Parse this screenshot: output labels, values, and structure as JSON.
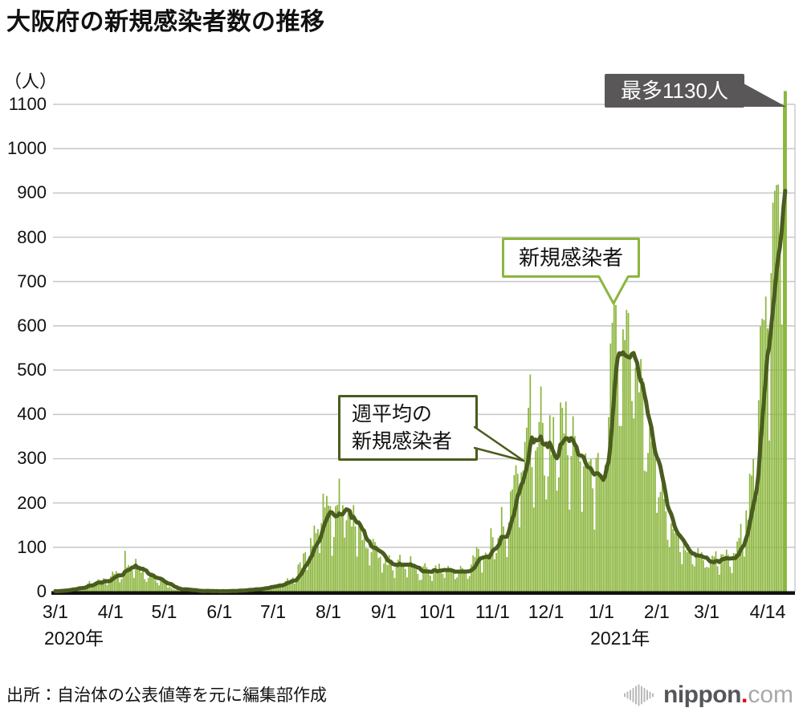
{
  "page": {
    "title": "大阪府の新規感染者数の推移",
    "unit_label": "（人）",
    "source_note": "出所：自治体の公表値等を元に編集部作成"
  },
  "annotations": {
    "max": {
      "text": "最多1130人",
      "value": 1130
    },
    "daily": {
      "text": "新規感染者"
    },
    "weekly": {
      "line1": "週平均の",
      "line2": "新規感染者"
    }
  },
  "logo": {
    "word": "nippon",
    "dot": ".",
    "tld": "com"
  },
  "colors": {
    "bar": "#8CB63E",
    "line": "#4A5C1E",
    "grid": "#C9C9C9",
    "axis": "#111111",
    "max_box": "#595757",
    "logo_gray": "#B9B9B9",
    "logo_red": "#E60012"
  },
  "chart_data": {
    "type": "bar",
    "title": "大阪府の新規感染者数の推移",
    "ylabel": "（人）",
    "ylim": [
      0,
      1100
    ],
    "y_ticks": [
      0,
      100,
      200,
      300,
      400,
      500,
      600,
      700,
      800,
      900,
      1000,
      1100
    ],
    "grid": true,
    "start_date": "2020-03-01",
    "end_date": "2021-04-14",
    "x_ticks": [
      {
        "label": "3/1",
        "day_index": 0
      },
      {
        "label": "4/1",
        "day_index": 31
      },
      {
        "label": "5/1",
        "day_index": 61
      },
      {
        "label": "6/1",
        "day_index": 92
      },
      {
        "label": "7/1",
        "day_index": 122
      },
      {
        "label": "8/1",
        "day_index": 153
      },
      {
        "label": "9/1",
        "day_index": 184
      },
      {
        "label": "10/1",
        "day_index": 214
      },
      {
        "label": "11/1",
        "day_index": 245
      },
      {
        "label": "12/1",
        "day_index": 275
      },
      {
        "label": "1/1",
        "day_index": 306
      },
      {
        "label": "2/1",
        "day_index": 337
      },
      {
        "label": "3/1",
        "day_index": 365
      },
      {
        "label": "4/14",
        "day_index": 409
      }
    ],
    "year_labels": [
      {
        "label": "2020年",
        "day_index": 0
      },
      {
        "label": "2021年",
        "day_index": 306
      }
    ],
    "series": [
      {
        "name": "新規感染者",
        "type": "bar",
        "color": "#8CB63E",
        "max_value": 1130,
        "daily_values": [
          1,
          0,
          2,
          2,
          3,
          4,
          5,
          3,
          4,
          6,
          8,
          5,
          9,
          12,
          10,
          6,
          8,
          14,
          18,
          24,
          16,
          12,
          20,
          24,
          28,
          22,
          18,
          30,
          25,
          15,
          28,
          34,
          45,
          40,
          46,
          42,
          21,
          28,
          45,
          92,
          55,
          60,
          53,
          47,
          31,
          74,
          59,
          52,
          43,
          55,
          28,
          22,
          31,
          38,
          43,
          38,
          26,
          20,
          14,
          26,
          23,
          18,
          22,
          9,
          12,
          8,
          5,
          4,
          9,
          6,
          3,
          2,
          5,
          8,
          3,
          5,
          2,
          1,
          0,
          2,
          3,
          1,
          2,
          0,
          1,
          3,
          1,
          0,
          2,
          1,
          0,
          1,
          0,
          1,
          2,
          1,
          0,
          2,
          1,
          3,
          2,
          1,
          2,
          3,
          4,
          2,
          3,
          5,
          4,
          6,
          3,
          5,
          8,
          6,
          4,
          7,
          9,
          8,
          11,
          9,
          12,
          14,
          10,
          15,
          12,
          18,
          16,
          13,
          20,
          24,
          30,
          22,
          28,
          32,
          18,
          25,
          61,
          66,
          53,
          86,
          89,
          49,
          72,
          121,
          104,
          149,
          132,
          141,
          87,
          155,
          221,
          190,
          216,
          194,
          193,
          81,
          123,
          193,
          196,
          255,
          178,
          195,
          122,
          161,
          185,
          177,
          147,
          195,
          147,
          79,
          161,
          142,
          116,
          120,
          98,
          97,
          59,
          89,
          119,
          112,
          104,
          76,
          79,
          43,
          63,
          78,
          60,
          82,
          65,
          48,
          31,
          61,
          72,
          83,
          61,
          66,
          51,
          32,
          59,
          80,
          62,
          58,
          50,
          40,
          26,
          27,
          57,
          64,
          55,
          49,
          36,
          24,
          51,
          59,
          46,
          63,
          52,
          40,
          31,
          49,
          58,
          51,
          53,
          45,
          28,
          32,
          49,
          58,
          53,
          50,
          47,
          29,
          35,
          61,
          82,
          78,
          100,
          96,
          70,
          43,
          72,
          88,
          84,
          86,
          143,
          123,
          73,
          87,
          121,
          125,
          191,
          147,
          117,
          78,
          156,
          226,
          231,
          263,
          285,
          266,
          145,
          269,
          273,
          338,
          370,
          415,
          490,
          281,
          190,
          318,
          326,
          383,
          463,
          381,
          262,
          208,
          260,
          398,
          309,
          394,
          310,
          228,
          258,
          427,
          415,
          357,
          429,
          308,
          185,
          306,
          396,
          351,
          313,
          308,
          294,
          180,
          283,
          312,
          289,
          294,
          299,
          233,
          140,
          302,
          313,
          262,
          262,
          253,
          286,
          287,
          394,
          560,
          607,
          654,
          647,
          532,
          374,
          374,
          592,
          568,
          636,
          629,
          525,
          430,
          391,
          506,
          501,
          450,
          525,
          482,
          273,
          271,
          313,
          397,
          338,
          332,
          299,
          178,
          213,
          225,
          244,
          209,
          181,
          117,
          100,
          154,
          141,
          132,
          141,
          127,
          89,
          62,
          118,
          93,
          89,
          91,
          88,
          62,
          57,
          88,
          98,
          82,
          89,
          71,
          54,
          56,
          54,
          67,
          81,
          79,
          91,
          57,
          38,
          84,
          84,
          81,
          95,
          83,
          56,
          42,
          87,
          86,
          113,
          121,
          153,
          100,
          79,
          183,
          162,
          266,
          262,
          300,
          225,
          213,
          432,
          599,
          616,
          613,
          666,
          594,
          341,
          719,
          878,
          905,
          918,
          919,
          760,
          603,
          1099,
          1130
        ]
      },
      {
        "name": "週平均の新規感染者",
        "type": "line",
        "color": "#4A5C1E",
        "derived": "7日移動平均（daily_valuesの直近7日平均）"
      }
    ]
  }
}
